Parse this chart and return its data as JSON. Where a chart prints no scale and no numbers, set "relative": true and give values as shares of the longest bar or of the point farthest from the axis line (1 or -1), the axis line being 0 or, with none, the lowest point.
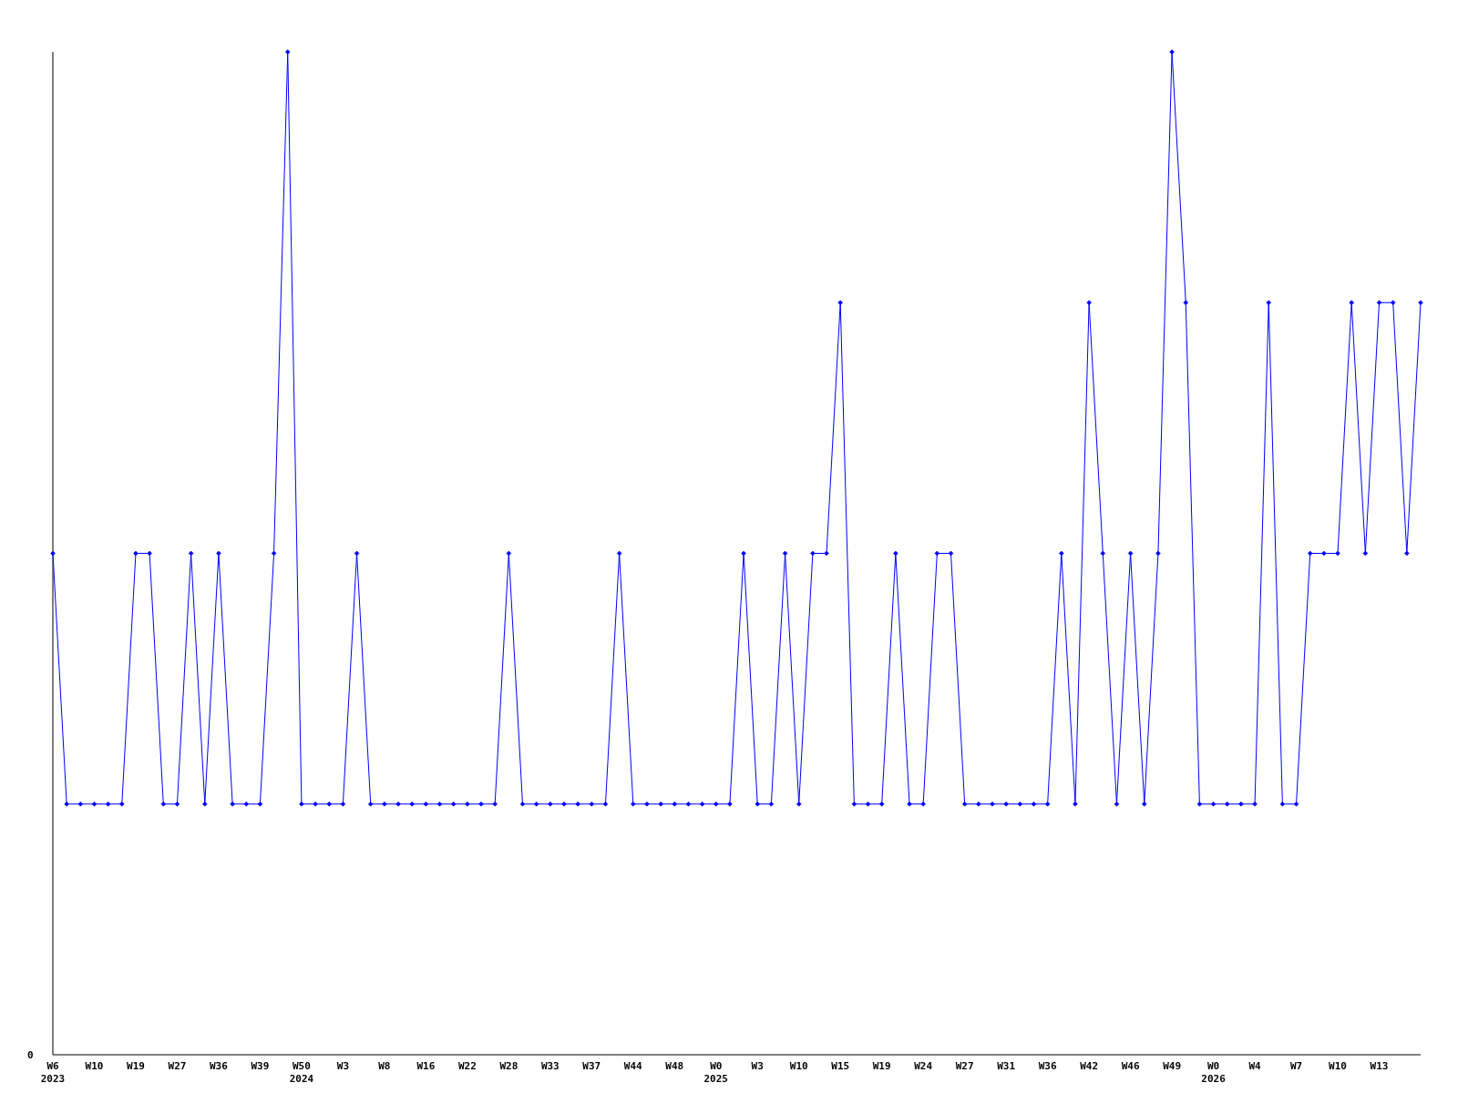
{
  "chart_data": {
    "type": "line",
    "relative": true,
    "marker": "diamond",
    "annotations": [
      "0"
    ],
    "categories": [
      "W6\n2023",
      null,
      null,
      "W10",
      null,
      null,
      "W19",
      null,
      null,
      "W27",
      null,
      null,
      "W36",
      null,
      null,
      "W39",
      null,
      null,
      "W50\n2024",
      null,
      null,
      "W3",
      null,
      null,
      "W8",
      null,
      null,
      "W16",
      null,
      null,
      "W22",
      null,
      null,
      "W28",
      null,
      null,
      "W33",
      null,
      null,
      "W37",
      null,
      null,
      "W44",
      null,
      null,
      "W48",
      null,
      null,
      "W0\n2025",
      null,
      null,
      "W3",
      null,
      null,
      "W10",
      null,
      null,
      "W15",
      null,
      null,
      "W19",
      null,
      null,
      "W24",
      null,
      null,
      "W27",
      null,
      null,
      "W31",
      null,
      null,
      "W36",
      null,
      null,
      "W42",
      null,
      null,
      "W46",
      null,
      null,
      "W49",
      null,
      null,
      "W0\n2026",
      null,
      null,
      "W4",
      null,
      null,
      "W7",
      null,
      null,
      "W10",
      null,
      null,
      "W13",
      null,
      null,
      null
    ],
    "series": [
      {
        "color": "#0000ff",
        "values": [
          0.5,
          0.25,
          0.25,
          0.25,
          0.25,
          0.25,
          0.5,
          0.5,
          0.25,
          0.25,
          0.5,
          0.25,
          0.5,
          0.25,
          0.25,
          0.25,
          0.5,
          1,
          0.25,
          0.25,
          0.25,
          0.25,
          0.5,
          0.25,
          0.25,
          0.25,
          0.25,
          0.25,
          0.25,
          0.25,
          0.25,
          0.25,
          0.25,
          0.5,
          0.25,
          0.25,
          0.25,
          0.25,
          0.25,
          0.25,
          0.25,
          0.5,
          0.25,
          0.25,
          0.25,
          0.25,
          0.25,
          0.25,
          0.25,
          0.25,
          0.5,
          0.25,
          0.25,
          0.5,
          0.25,
          0.5,
          0.5,
          0.75,
          0.25,
          0.25,
          0.25,
          0.5,
          0.25,
          0.25,
          0.5,
          0.5,
          0.25,
          0.25,
          0.25,
          0.25,
          0.25,
          0.25,
          0.25,
          0.5,
          0.25,
          0.75,
          0.5,
          0.25,
          0.5,
          0.25,
          0.5,
          1,
          0.75,
          0.25,
          0.25,
          0.25,
          0.25,
          0.25,
          0.75,
          0.25,
          0.25,
          0.5,
          0.5,
          0.5,
          0.75,
          0.5,
          0.75,
          0.75,
          0.5,
          0.75
        ]
      }
    ]
  }
}
